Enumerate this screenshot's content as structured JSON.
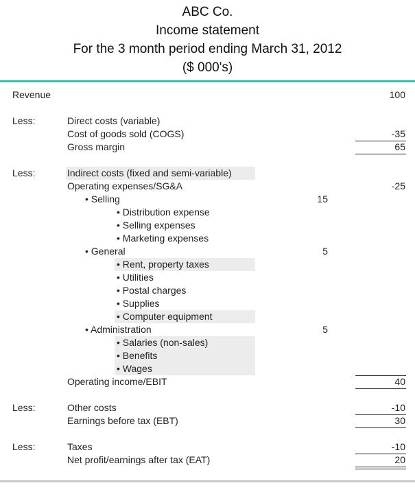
{
  "header": {
    "company": "ABC Co.",
    "statement": "Income statement",
    "period": "For the 3 month period ending March 31, 2012",
    "units": "($ 000's)"
  },
  "colors": {
    "accent_rule": "#3bb9ad",
    "bottom_rule": "#c9c9c9",
    "highlight": "#ececec"
  },
  "revenue": {
    "label": "Revenue",
    "value": "100"
  },
  "less_label": "Less:",
  "direct": {
    "heading": "Direct costs (variable)",
    "cogs_label": "Cost of goods sold (COGS)",
    "cogs_value": "-35",
    "gross_label": "Gross margin",
    "gross_value": "65"
  },
  "indirect": {
    "heading": "Indirect costs (fixed and semi-variable)",
    "opex_label": "Operating expenses/SG&A",
    "opex_value": "-25",
    "selling": {
      "label": "• Selling",
      "value": "15",
      "items": [
        "• Distribution expense",
        "• Selling expenses",
        "• Marketing expenses"
      ]
    },
    "general": {
      "label": "• General",
      "value": "5",
      "items": [
        "• Rent, property taxes",
        "• Utilities",
        "• Postal charges",
        "• Supplies",
        "• Computer equipment"
      ]
    },
    "administration": {
      "label": "• Administration",
      "value": "5",
      "items": [
        "• Salaries (non-sales)",
        "• Benefits",
        "• Wages"
      ]
    },
    "ebit_label": "Operating income/EBIT",
    "ebit_value": "40"
  },
  "other": {
    "label": "Other costs",
    "value": "-10",
    "ebt_label": "Earnings before tax (EBT)",
    "ebt_value": "30"
  },
  "taxes": {
    "label": "Taxes",
    "value": "-10",
    "eat_label": "Net profit/earnings after tax (EAT)",
    "eat_value": "20"
  }
}
